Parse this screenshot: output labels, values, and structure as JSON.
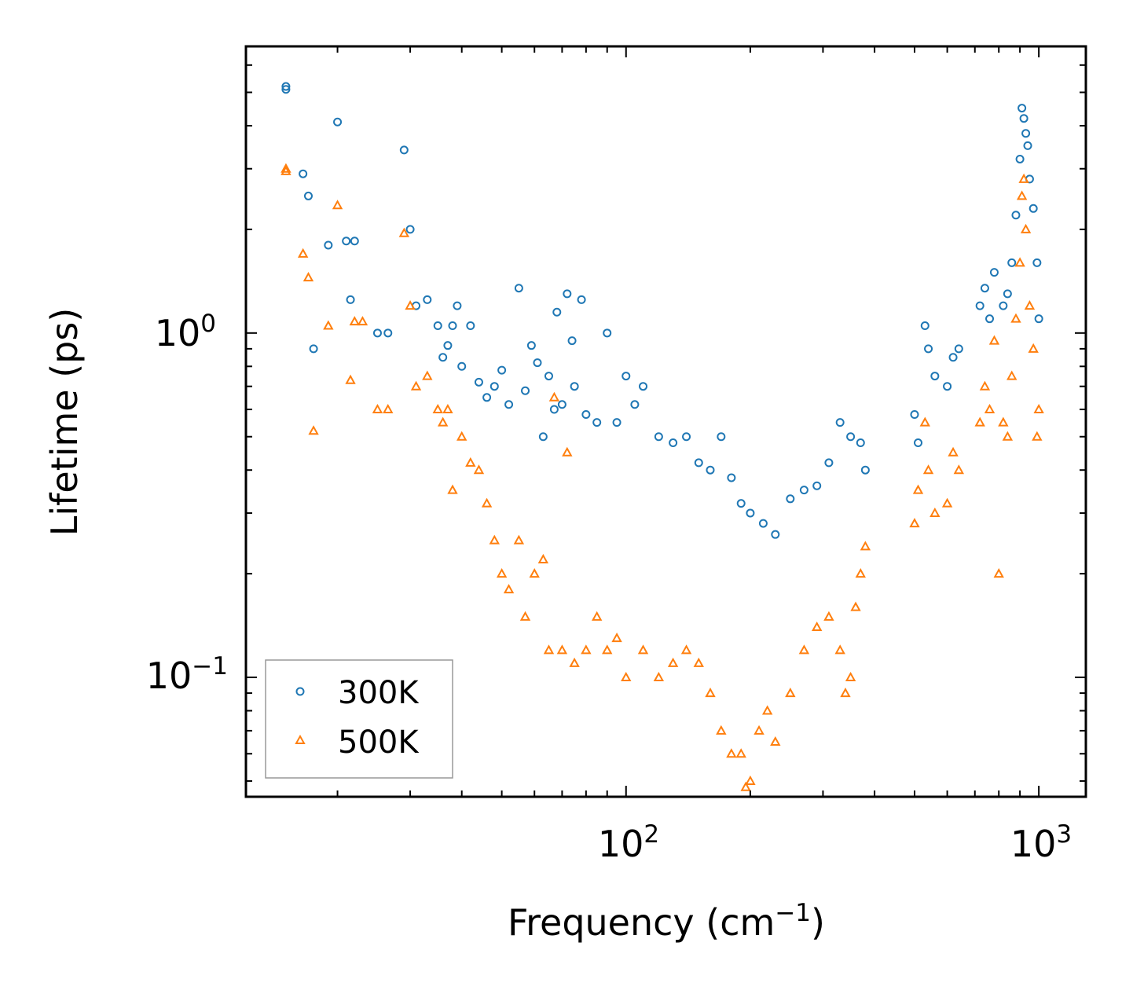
{
  "chart_data": {
    "type": "scatter",
    "xscale": "log",
    "yscale": "log",
    "xlim": [
      12,
      1300
    ],
    "ylim": [
      0.045,
      6.8
    ],
    "xlabel": "Frequency (cm",
    "xlabel_sup": "−1",
    "xlabel_end": ")",
    "ylabel": "Lifetime (ps)",
    "x_ticks": [
      {
        "value": 100,
        "base": "10",
        "exp": "2"
      },
      {
        "value": 1000,
        "base": "10",
        "exp": "3"
      }
    ],
    "y_ticks": [
      {
        "value": 1.0,
        "base": "10",
        "exp": "0"
      },
      {
        "value": 0.1,
        "base": "10",
        "exp": "−1"
      }
    ],
    "legend": {
      "location": "lower-left",
      "entries": [
        "300K",
        "500K"
      ]
    },
    "colors": {
      "300K": "#1f77b4",
      "500K": "#ff7f0e"
    },
    "series": [
      {
        "name": "300K",
        "marker": "circle",
        "points": [
          [
            15,
            5.2
          ],
          [
            15,
            5.1
          ],
          [
            16.5,
            2.9
          ],
          [
            17,
            2.5
          ],
          [
            17.5,
            0.9
          ],
          [
            19,
            1.8
          ],
          [
            20,
            4.1
          ],
          [
            21,
            1.85
          ],
          [
            22,
            1.85
          ],
          [
            21.5,
            1.25
          ],
          [
            25,
            1.0
          ],
          [
            26.5,
            1.0
          ],
          [
            29,
            3.4
          ],
          [
            30,
            2.0
          ],
          [
            31,
            1.2
          ],
          [
            33,
            1.25
          ],
          [
            35,
            1.05
          ],
          [
            36,
            0.85
          ],
          [
            37,
            0.92
          ],
          [
            38,
            1.05
          ],
          [
            39,
            1.2
          ],
          [
            40,
            0.8
          ],
          [
            42,
            1.05
          ],
          [
            44,
            0.72
          ],
          [
            46,
            0.65
          ],
          [
            48,
            0.7
          ],
          [
            50,
            0.78
          ],
          [
            52,
            0.62
          ],
          [
            55,
            1.35
          ],
          [
            57,
            0.68
          ],
          [
            59,
            0.92
          ],
          [
            61,
            0.82
          ],
          [
            63,
            0.5
          ],
          [
            65,
            0.75
          ],
          [
            67,
            0.6
          ],
          [
            68,
            1.15
          ],
          [
            70,
            0.62
          ],
          [
            72,
            1.3
          ],
          [
            74,
            0.95
          ],
          [
            75,
            0.7
          ],
          [
            78,
            1.25
          ],
          [
            80,
            0.58
          ],
          [
            85,
            0.55
          ],
          [
            90,
            1.0
          ],
          [
            95,
            0.55
          ],
          [
            100,
            0.75
          ],
          [
            105,
            0.62
          ],
          [
            110,
            0.7
          ],
          [
            120,
            0.5
          ],
          [
            130,
            0.48
          ],
          [
            140,
            0.5
          ],
          [
            150,
            0.42
          ],
          [
            160,
            0.4
          ],
          [
            170,
            0.5
          ],
          [
            180,
            0.38
          ],
          [
            190,
            0.32
          ],
          [
            200,
            0.3
          ],
          [
            215,
            0.28
          ],
          [
            230,
            0.26
          ],
          [
            250,
            0.33
          ],
          [
            270,
            0.35
          ],
          [
            290,
            0.36
          ],
          [
            310,
            0.42
          ],
          [
            330,
            0.55
          ],
          [
            350,
            0.5
          ],
          [
            370,
            0.48
          ],
          [
            380,
            0.4
          ],
          [
            500,
            0.58
          ],
          [
            510,
            0.48
          ],
          [
            530,
            1.05
          ],
          [
            540,
            0.9
          ],
          [
            560,
            0.75
          ],
          [
            600,
            0.7
          ],
          [
            620,
            0.85
          ],
          [
            640,
            0.9
          ],
          [
            720,
            1.2
          ],
          [
            740,
            1.35
          ],
          [
            760,
            1.1
          ],
          [
            780,
            1.5
          ],
          [
            820,
            1.2
          ],
          [
            840,
            1.3
          ],
          [
            860,
            1.6
          ],
          [
            880,
            2.2
          ],
          [
            900,
            3.2
          ],
          [
            910,
            4.5
          ],
          [
            920,
            4.2
          ],
          [
            930,
            3.8
          ],
          [
            940,
            3.5
          ],
          [
            950,
            2.8
          ],
          [
            970,
            2.3
          ],
          [
            990,
            1.6
          ],
          [
            1000,
            1.1
          ]
        ]
      },
      {
        "name": "500K",
        "marker": "triangle",
        "points": [
          [
            15,
            2.95
          ],
          [
            15,
            3.0
          ],
          [
            16.5,
            1.7
          ],
          [
            17,
            1.45
          ],
          [
            17.5,
            0.52
          ],
          [
            19,
            1.05
          ],
          [
            20,
            2.35
          ],
          [
            22,
            1.08
          ],
          [
            23,
            1.08
          ],
          [
            21.5,
            0.73
          ],
          [
            25,
            0.6
          ],
          [
            26.5,
            0.6
          ],
          [
            29,
            1.95
          ],
          [
            30,
            1.2
          ],
          [
            31,
            0.7
          ],
          [
            33,
            0.75
          ],
          [
            35,
            0.6
          ],
          [
            36,
            0.55
          ],
          [
            37,
            0.6
          ],
          [
            38,
            0.35
          ],
          [
            40,
            0.5
          ],
          [
            42,
            0.42
          ],
          [
            44,
            0.4
          ],
          [
            46,
            0.32
          ],
          [
            48,
            0.25
          ],
          [
            50,
            0.2
          ],
          [
            52,
            0.18
          ],
          [
            55,
            0.25
          ],
          [
            57,
            0.15
          ],
          [
            60,
            0.2
          ],
          [
            63,
            0.22
          ],
          [
            65,
            0.12
          ],
          [
            67,
            0.65
          ],
          [
            70,
            0.12
          ],
          [
            72,
            0.45
          ],
          [
            75,
            0.11
          ],
          [
            80,
            0.12
          ],
          [
            85,
            0.15
          ],
          [
            90,
            0.12
          ],
          [
            95,
            0.13
          ],
          [
            100,
            0.1
          ],
          [
            110,
            0.12
          ],
          [
            120,
            0.1
          ],
          [
            130,
            0.11
          ],
          [
            140,
            0.12
          ],
          [
            150,
            0.11
          ],
          [
            160,
            0.09
          ],
          [
            170,
            0.07
          ],
          [
            180,
            0.06
          ],
          [
            190,
            0.06
          ],
          [
            195,
            0.048
          ],
          [
            200,
            0.05
          ],
          [
            210,
            0.07
          ],
          [
            220,
            0.08
          ],
          [
            230,
            0.065
          ],
          [
            250,
            0.09
          ],
          [
            270,
            0.12
          ],
          [
            290,
            0.14
          ],
          [
            310,
            0.15
          ],
          [
            330,
            0.12
          ],
          [
            340,
            0.09
          ],
          [
            350,
            0.1
          ],
          [
            360,
            0.16
          ],
          [
            370,
            0.2
          ],
          [
            380,
            0.24
          ],
          [
            500,
            0.28
          ],
          [
            510,
            0.35
          ],
          [
            530,
            0.55
          ],
          [
            540,
            0.4
          ],
          [
            560,
            0.3
          ],
          [
            600,
            0.32
          ],
          [
            620,
            0.45
          ],
          [
            640,
            0.4
          ],
          [
            720,
            0.55
          ],
          [
            740,
            0.7
          ],
          [
            760,
            0.6
          ],
          [
            780,
            0.95
          ],
          [
            800,
            0.2
          ],
          [
            820,
            0.55
          ],
          [
            840,
            0.5
          ],
          [
            860,
            0.75
          ],
          [
            880,
            1.1
          ],
          [
            900,
            1.6
          ],
          [
            910,
            2.5
          ],
          [
            920,
            2.8
          ],
          [
            930,
            2.0
          ],
          [
            950,
            1.2
          ],
          [
            970,
            0.9
          ],
          [
            990,
            0.5
          ],
          [
            1000,
            0.6
          ]
        ]
      }
    ]
  }
}
